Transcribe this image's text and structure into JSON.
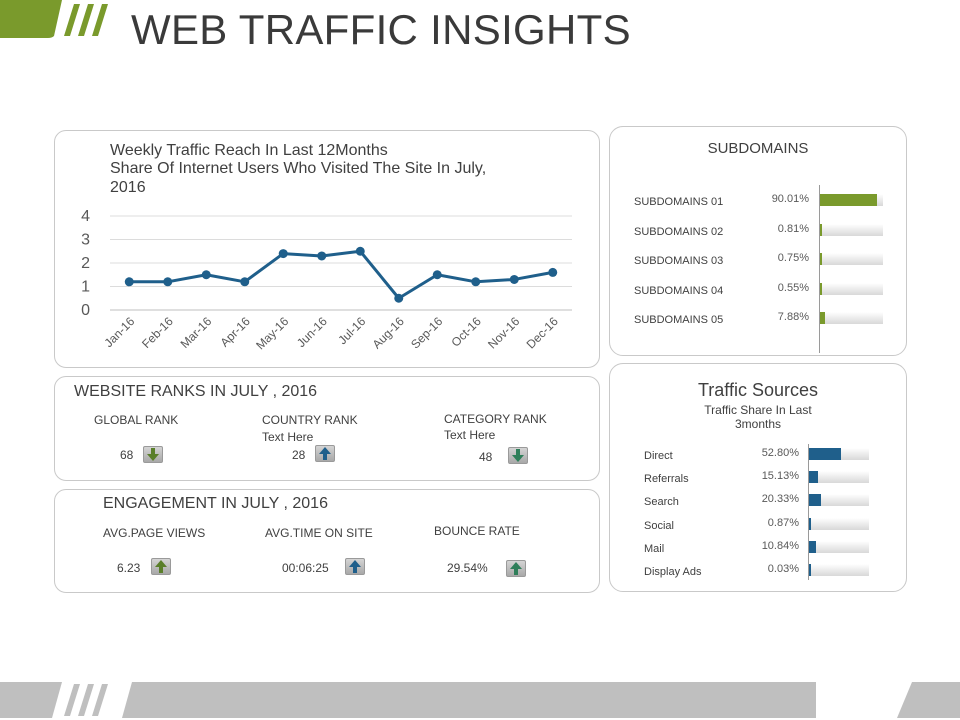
{
  "page": {
    "title": "WEB TRAFFIC INSIGHTS"
  },
  "colors": {
    "green": "#7a9a2c",
    "blue": "#1f5f8b",
    "gray": "#bdbdbd"
  },
  "chart_data": {
    "type": "line",
    "title": "Weekly Traffic Reach In Last 12Months",
    "subtitle_line1": "Share Of Internet Users Who Visited The Site In July,",
    "subtitle_line2": "2016",
    "categories": [
      "Jan-16",
      "Feb-16",
      "Mar-16",
      "Apr-16",
      "May-16",
      "Jun-16",
      "Jul-16",
      "Aug-16",
      "Sep-16",
      "Oct-16",
      "Nov-16",
      "Dec-16"
    ],
    "values": [
      1.2,
      1.2,
      1.5,
      1.2,
      2.4,
      2.3,
      2.5,
      0.5,
      1.5,
      1.2,
      1.3,
      1.6
    ],
    "yticks": [
      "0",
      "1",
      "2",
      "3",
      "4"
    ],
    "ylim": [
      0,
      4
    ],
    "grid": true,
    "legend": "none"
  },
  "ranks": {
    "heading": "WEBSITE RANKS IN JULY , 2016",
    "items": [
      {
        "label": "GLOBAL RANK",
        "sub": "",
        "value": "68",
        "direction": "down"
      },
      {
        "label": "COUNTRY RANK",
        "sub": "Text Here",
        "value": "28",
        "direction": "up"
      },
      {
        "label": "CATEGORY RANK",
        "sub": "Text Here",
        "value": "48",
        "direction": "down"
      }
    ]
  },
  "engagement": {
    "heading": "ENGAGEMENT IN JULY , 2016",
    "items": [
      {
        "label": "AVG.PAGE VIEWS",
        "value": "6.23",
        "direction": "up"
      },
      {
        "label": "AVG.TIME ON SITE",
        "value": "00:06:25",
        "direction": "up"
      },
      {
        "label": "BOUNCE RATE",
        "value": "29.54%",
        "direction": "up"
      }
    ]
  },
  "subdomains": {
    "heading": "SUBDOMAINS",
    "items": [
      {
        "label": "SUBDOMAINS 01",
        "value_label": "90.01%",
        "value": 90.01
      },
      {
        "label": "SUBDOMAINS 02",
        "value_label": "0.81%",
        "value": 0.81
      },
      {
        "label": "SUBDOMAINS 03",
        "value_label": "0.75%",
        "value": 0.75
      },
      {
        "label": "SUBDOMAINS 04",
        "value_label": "0.55%",
        "value": 0.55
      },
      {
        "label": "SUBDOMAINS 05",
        "value_label": "7.88%",
        "value": 7.88
      }
    ]
  },
  "traffic_sources": {
    "heading": "Traffic Sources",
    "subheading_line1": "Traffic Share In Last",
    "subheading_line2": "3months",
    "items": [
      {
        "label": "Direct",
        "value_label": "52.80%",
        "value": 52.8
      },
      {
        "label": "Referrals",
        "value_label": "15.13%",
        "value": 15.13
      },
      {
        "label": "Search",
        "value_label": "20.33%",
        "value": 20.33
      },
      {
        "label": "Social",
        "value_label": "0.87%",
        "value": 0.87
      },
      {
        "label": "Mail",
        "value_label": "10.84%",
        "value": 10.84
      },
      {
        "label": "Display Ads",
        "value_label": "0.03%",
        "value": 0.03
      }
    ]
  }
}
